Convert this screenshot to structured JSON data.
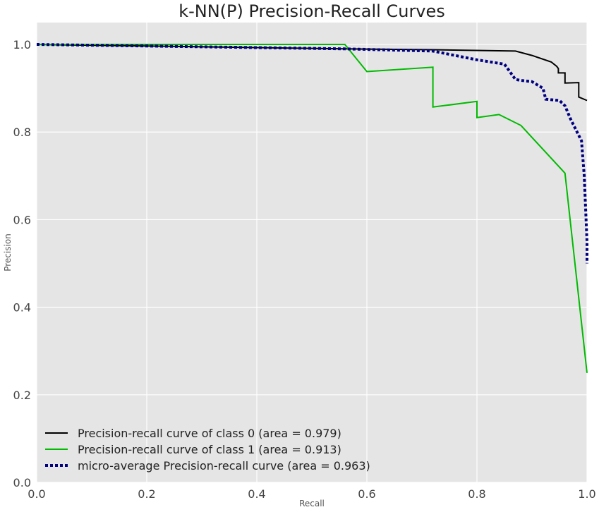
{
  "chart_data": {
    "type": "line",
    "title": "k-NN(P) Precision-Recall Curves",
    "xlabel": "Recall",
    "ylabel": "Precision",
    "xlim": [
      0.0,
      1.0
    ],
    "ylim": [
      0.0,
      1.05
    ],
    "xticks": [
      "0.0",
      "0.2",
      "0.4",
      "0.6",
      "0.8",
      "1.0"
    ],
    "yticks": [
      "0.0",
      "0.2",
      "0.4",
      "0.6",
      "0.8",
      "1.0"
    ],
    "grid": true,
    "legend_position": "lower-left",
    "background": "#e5e5e5",
    "series": [
      {
        "name": "Precision-recall curve of class 0 (area = 0.979)",
        "color": "#000000",
        "style": "solid",
        "x": [
          0.0,
          0.56,
          0.72,
          0.87,
          0.9,
          0.935,
          0.945,
          0.948,
          0.948,
          0.96,
          0.96,
          0.985,
          0.985,
          1.0
        ],
        "y": [
          1.0,
          0.99,
          0.988,
          0.985,
          0.975,
          0.96,
          0.95,
          0.945,
          0.935,
          0.935,
          0.912,
          0.913,
          0.88,
          0.872
        ]
      },
      {
        "name": "Precision-recall curve of class 1 (area = 0.913)",
        "color": "#00bb00",
        "style": "solid",
        "x": [
          0.0,
          0.56,
          0.6,
          0.72,
          0.72,
          0.8,
          0.8,
          0.84,
          0.88,
          0.96,
          1.0
        ],
        "y": [
          1.0,
          1.0,
          0.938,
          0.948,
          0.857,
          0.87,
          0.833,
          0.84,
          0.815,
          0.706,
          0.25
        ]
      },
      {
        "name": "micro-average Precision-recall curve (area = 0.963)",
        "color": "#000080",
        "style": "dotted",
        "x": [
          0.0,
          0.56,
          0.72,
          0.8,
          0.85,
          0.87,
          0.88,
          0.9,
          0.92,
          0.925,
          0.95,
          0.96,
          0.97,
          0.99,
          0.995,
          1.0,
          1.0
        ],
        "y": [
          1.0,
          0.99,
          0.985,
          0.965,
          0.955,
          0.92,
          0.918,
          0.915,
          0.9,
          0.875,
          0.872,
          0.86,
          0.83,
          0.78,
          0.7,
          0.55,
          0.5
        ]
      }
    ]
  }
}
